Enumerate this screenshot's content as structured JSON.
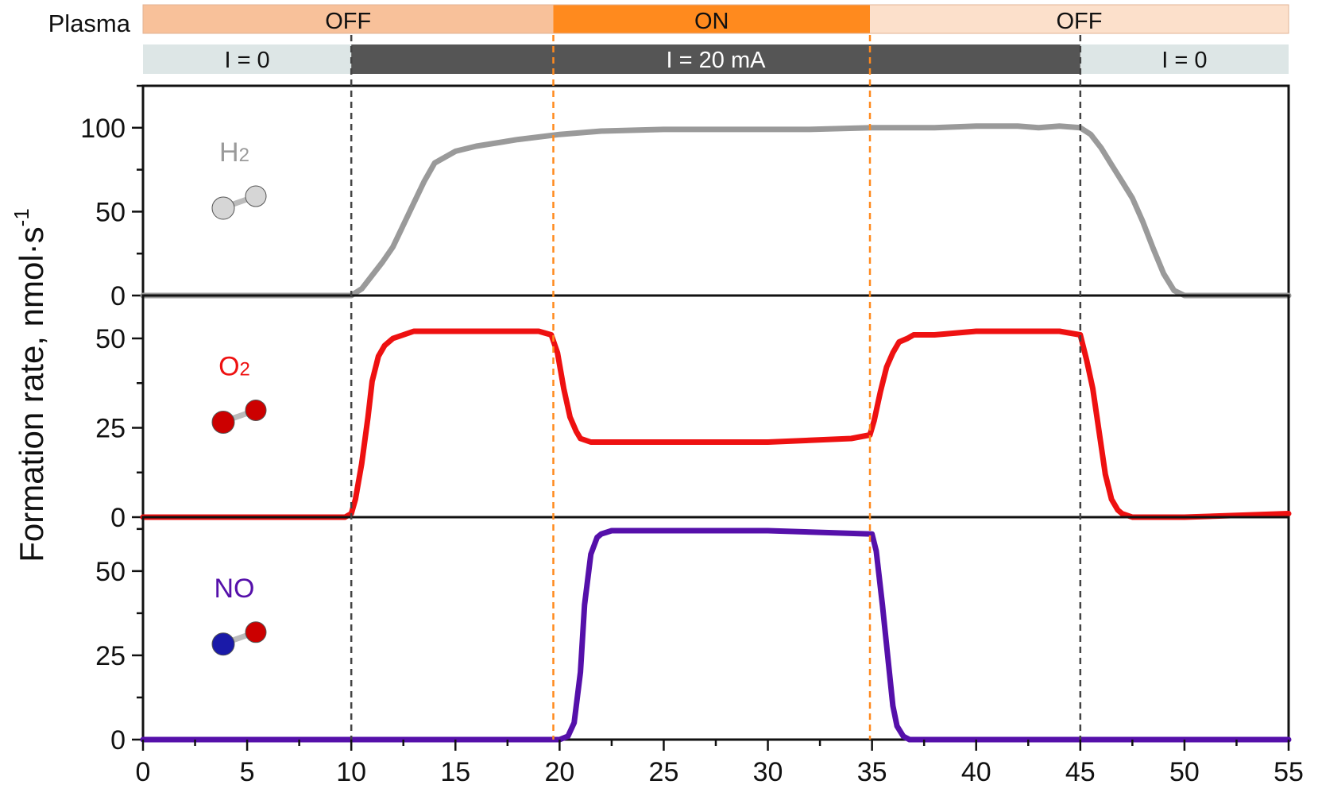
{
  "figure": {
    "ylabel_main": "Formation rate, nmol·s",
    "ylabel_sup": "-1"
  },
  "bands": {
    "plasma_label": "Plasma",
    "plasma": [
      {
        "label": "OFF",
        "start": 0,
        "end": 19.7,
        "color": "#f8c19a"
      },
      {
        "label": "ON",
        "start": 19.7,
        "end": 34.9,
        "color": "#ff8a1e"
      },
      {
        "label": "OFF",
        "start": 34.9,
        "end": 55,
        "color": "#fce0cb"
      }
    ],
    "current": [
      {
        "label": "I = 0",
        "start": 0,
        "end": 10,
        "color": "#dde6e6",
        "text_color": "#111111"
      },
      {
        "label": "I = 20 mA",
        "start": 10,
        "end": 45,
        "color": "#555555",
        "text_color": "#ffffff"
      },
      {
        "label": "I = 0",
        "start": 45,
        "end": 55,
        "color": "#dde6e6",
        "text_color": "#111111"
      }
    ]
  },
  "markers": [
    {
      "x": 10,
      "color": "#444444"
    },
    {
      "x": 19.7,
      "color": "#ff8a1e"
    },
    {
      "x": 34.9,
      "color": "#ff8a1e"
    },
    {
      "x": 45,
      "color": "#444444"
    }
  ],
  "chart_data": [
    {
      "type": "line",
      "panel": "H2",
      "label_main": "H",
      "label_sub": "2",
      "color": "#9a9a9a",
      "molecule": {
        "atoms": [
          "#d6d6d6",
          "#d6d6d6"
        ]
      },
      "xlim": [
        0,
        55
      ],
      "ylim": [
        0,
        125
      ],
      "yticks": [
        0,
        50,
        100
      ],
      "series": [
        {
          "name": "H2",
          "x": [
            0,
            5,
            9.9,
            10,
            10.5,
            11,
            11.5,
            12,
            12.5,
            13,
            13.5,
            14,
            15,
            16,
            18,
            20,
            22,
            25,
            28,
            30,
            32,
            35,
            38,
            40,
            42,
            43,
            44,
            45,
            45.5,
            46,
            46.5,
            47,
            47.5,
            48,
            48.5,
            49,
            49.5,
            50,
            52,
            55
          ],
          "y": [
            0,
            0,
            0,
            0,
            4,
            12,
            20,
            29,
            42,
            55,
            68,
            79,
            86,
            89,
            93,
            96,
            98,
            99,
            99,
            99,
            99,
            100,
            100,
            101,
            101,
            100,
            101,
            100,
            96,
            88,
            78,
            68,
            58,
            44,
            28,
            13,
            3,
            0,
            0,
            0
          ]
        }
      ]
    },
    {
      "type": "line",
      "panel": "O2",
      "label_main": "O",
      "label_sub": "2",
      "color": "#ee1111",
      "molecule": {
        "atoms": [
          "#cc0000",
          "#cc0000"
        ]
      },
      "xlim": [
        0,
        55
      ],
      "ylim": [
        0,
        62
      ],
      "yticks": [
        0,
        25,
        50
      ],
      "series": [
        {
          "name": "O2",
          "x": [
            0,
            5,
            9.7,
            10,
            10.2,
            10.5,
            10.8,
            11,
            11.3,
            11.6,
            12,
            12.5,
            13,
            15,
            17,
            19,
            19.6,
            19.9,
            20.2,
            20.5,
            20.8,
            21,
            21.5,
            22,
            25,
            30,
            34,
            34.9,
            35.1,
            35.4,
            35.7,
            36,
            36.3,
            36.7,
            37,
            38,
            40,
            43,
            44,
            45,
            45.3,
            45.6,
            45.9,
            46.2,
            46.5,
            46.8,
            47,
            47.5,
            48,
            50,
            55
          ],
          "y": [
            0,
            0,
            0,
            1,
            5,
            15,
            28,
            38,
            45,
            48,
            50,
            51,
            52,
            52,
            52,
            52,
            51,
            46,
            36,
            28,
            24,
            22,
            21,
            21,
            21,
            21,
            22,
            23,
            27,
            35,
            42,
            46,
            49,
            50,
            51,
            51,
            52,
            52,
            52,
            51,
            44,
            36,
            24,
            12,
            5,
            2,
            1,
            0,
            0,
            0,
            1
          ]
        }
      ]
    },
    {
      "type": "line",
      "panel": "NO",
      "label_main": "NO",
      "label_sub": "",
      "color": "#5510aa",
      "molecule": {
        "atoms": [
          "#1a1aa8",
          "#cc0000"
        ]
      },
      "xlim": [
        0,
        55
      ],
      "ylim": [
        0,
        66
      ],
      "yticks": [
        0,
        25,
        50
      ],
      "xticks": [
        0,
        5,
        10,
        15,
        20,
        25,
        30,
        35,
        40,
        45,
        50,
        55
      ],
      "xlabel": "",
      "series": [
        {
          "name": "NO",
          "x": [
            0,
            10,
            20,
            20.4,
            20.7,
            21,
            21.2,
            21.5,
            21.8,
            22,
            22.5,
            23,
            25,
            30,
            35,
            35.2,
            35.5,
            35.8,
            36,
            36.2,
            36.5,
            36.8,
            37,
            38,
            45,
            55
          ],
          "y": [
            0,
            0,
            0,
            1,
            5,
            20,
            40,
            55,
            60,
            61,
            62,
            62,
            62,
            62,
            61,
            56,
            40,
            22,
            10,
            4,
            1,
            0,
            0,
            0,
            0,
            0
          ]
        }
      ]
    }
  ]
}
